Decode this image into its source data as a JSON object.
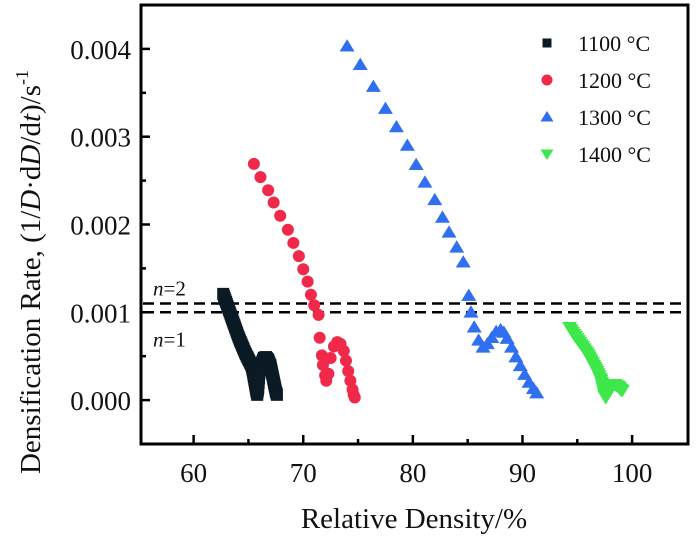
{
  "chart_data": {
    "type": "scatter",
    "title": "",
    "xlabel": "Relative Density/%",
    "ylabel": {
      "prefix": "Densification Rate, (1/",
      "italic1": "D",
      "mid": "·d",
      "italic2": "D",
      "mid2": "/d",
      "italic3": "t",
      "suffix": ")/s",
      "superscript": "-1"
    },
    "xlim": [
      55.2,
      105.1
    ],
    "ylim": [
      -0.0005,
      0.0045
    ],
    "grid": false,
    "legend_position": "top-right",
    "x_ticks": [
      60,
      70,
      80,
      90,
      100
    ],
    "x_tick_labels": [
      "60",
      "70",
      "80",
      "90",
      "100"
    ],
    "x_minor_ticks": [
      65,
      75,
      85,
      95
    ],
    "y_ticks": [
      0.0,
      0.001,
      0.002,
      0.003,
      0.004
    ],
    "y_tick_labels": [
      "0.000",
      "0.001",
      "0.002",
      "0.003",
      "0.004"
    ],
    "y_minor_ticks": [
      0.0005,
      0.0015,
      0.0025,
      0.0035
    ],
    "reference_lines": [
      {
        "y": 0.0011,
        "label_prefix": "n",
        "label_suffix": "=2",
        "style": "dashed"
      },
      {
        "y": 0.001,
        "label_prefix": "n",
        "label_suffix": "=1",
        "style": "dashed"
      }
    ],
    "series": [
      {
        "name": "1100 °C",
        "marker": "square",
        "color": "#0b1a24",
        "x": [
          62.7,
          62.9,
          63.1,
          63.3,
          63.5,
          63.7,
          63.9,
          64.1,
          64.3,
          64.5,
          64.7,
          64.9,
          65.1,
          65.3,
          65.4,
          65.5,
          65.6,
          65.7,
          65.8,
          65.9,
          66.0,
          66.2,
          66.4,
          66.6,
          66.8,
          67.0,
          67.1,
          67.2,
          67.3,
          67.4,
          67.5,
          67.6
        ],
        "y": [
          0.00121,
          0.00114,
          0.00107,
          0.001,
          0.00093,
          0.00086,
          0.00079,
          0.00072,
          0.00066,
          0.0006,
          0.00054,
          0.00049,
          0.00044,
          0.00039,
          0.00033,
          0.00026,
          0.00019,
          0.00012,
          6e-05,
          0.00014,
          0.0003,
          0.00042,
          0.00048,
          0.00049,
          0.00046,
          0.0004,
          0.00034,
          0.00028,
          0.00022,
          0.00016,
          0.0001,
          6e-05
        ]
      },
      {
        "name": "1200 °C",
        "marker": "circle",
        "color": "#f0294a",
        "x": [
          65.5,
          66.1,
          66.8,
          67.3,
          67.9,
          68.6,
          69.1,
          69.6,
          70.0,
          70.4,
          70.7,
          71.0,
          71.4,
          71.5,
          71.7,
          71.8,
          72.0,
          72.1,
          72.3,
          72.5,
          72.8,
          73.1,
          73.4,
          73.7,
          73.9,
          74.1,
          74.3,
          74.5,
          74.6,
          74.7
        ],
        "y": [
          0.00269,
          0.00254,
          0.00239,
          0.00225,
          0.0021,
          0.00194,
          0.00179,
          0.00164,
          0.00149,
          0.00135,
          0.0012,
          0.00108,
          0.00097,
          0.00071,
          0.00051,
          0.0004,
          0.00028,
          0.00022,
          0.0003,
          0.00048,
          0.00061,
          0.00066,
          0.00064,
          0.00056,
          0.00045,
          0.00033,
          0.00022,
          0.00012,
          6e-05,
          3e-05
        ]
      },
      {
        "name": "1300 °C",
        "marker": "triangle-up",
        "color": "#2f6ff0",
        "x": [
          74.0,
          75.2,
          76.4,
          77.5,
          78.5,
          79.5,
          80.3,
          81.1,
          82.0,
          82.7,
          83.3,
          84.0,
          84.6,
          85.1,
          85.3,
          85.6,
          86.0,
          86.4,
          86.8,
          87.2,
          87.6,
          88.0,
          88.3,
          88.6,
          89.0,
          89.4,
          89.8,
          90.2,
          90.6,
          91.0,
          91.3
        ],
        "y": [
          0.00403,
          0.00382,
          0.00357,
          0.00332,
          0.00311,
          0.0029,
          0.00268,
          0.00248,
          0.00228,
          0.00208,
          0.00191,
          0.00174,
          0.00157,
          0.00119,
          0.001,
          0.00083,
          0.00068,
          0.0006,
          0.00064,
          0.00071,
          0.00078,
          0.0008,
          0.00077,
          0.0007,
          0.0006,
          0.00049,
          0.00039,
          0.00029,
          0.0002,
          0.00013,
          8e-05
        ]
      },
      {
        "name": "1400 °C",
        "marker": "triangle-down",
        "color": "#3ee84a",
        "x": [
          94.3,
          94.7,
          95.1,
          95.5,
          95.9,
          96.2,
          96.5,
          96.8,
          97.1,
          97.3,
          97.4,
          97.5,
          97.6,
          97.8,
          98.1,
          98.4,
          98.7,
          98.9,
          99.1
        ],
        "y": [
          0.00083,
          0.00075,
          0.00068,
          0.00061,
          0.00054,
          0.00047,
          0.0004,
          0.00033,
          0.00025,
          0.00018,
          0.00012,
          6e-05,
          3e-05,
          9e-05,
          0.00016,
          0.00018,
          0.00016,
          0.00013,
          0.00011
        ]
      }
    ]
  }
}
